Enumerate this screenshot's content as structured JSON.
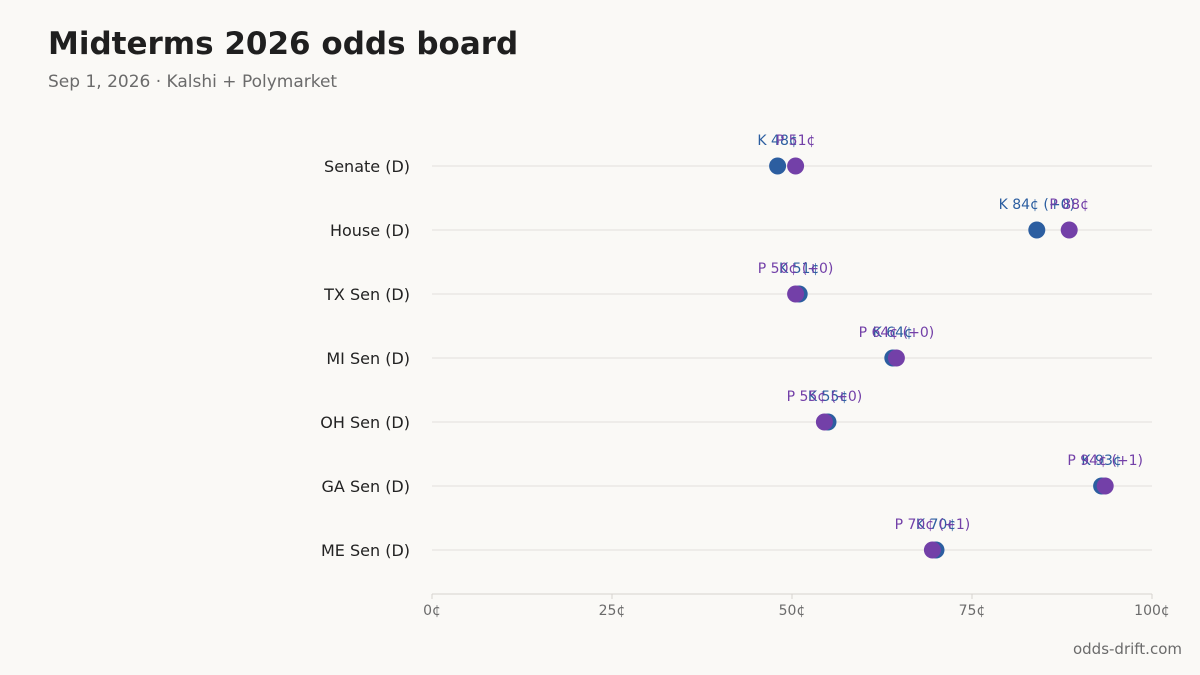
{
  "title": "Midterms 2026 odds board",
  "subtitle": "Sep 1, 2026 · Kalshi + Polymarket",
  "footer": "odds-drift.com",
  "colors": {
    "kalshi": "#2c5ea0",
    "polymarket": "#7340a8",
    "grid": "#e2e0dc",
    "axis": "#d6d3ce",
    "text": "#222222",
    "tick": "#6b6b6b"
  },
  "chart_data": {
    "type": "scatter",
    "x_ticks": [
      "0¢",
      "25¢",
      "50¢",
      "75¢",
      "100¢"
    ],
    "xlim": [
      0,
      100
    ],
    "series": [
      {
        "name": "K",
        "values": [
          48,
          84,
          51,
          64,
          55,
          93,
          70
        ]
      },
      {
        "name": "P",
        "values": [
          50.5,
          88.5,
          50.5,
          64.5,
          54.5,
          93.5,
          69.5
        ]
      }
    ],
    "rows": [
      {
        "label": "Senate (D)",
        "k": 48,
        "p": 50.5,
        "k_text": "K 48¢",
        "p_text": "P 51¢"
      },
      {
        "label": "House (D)",
        "k": 84,
        "p": 88.5,
        "k_text": "K 84¢ (+0)",
        "p_text": "P 88¢"
      },
      {
        "label": "TX Sen (D)",
        "k": 51,
        "p": 50.5,
        "k_text": "K 51¢",
        "p_text": "P 50¢ (+0)"
      },
      {
        "label": "MI Sen (D)",
        "k": 64,
        "p": 64.5,
        "k_text": "K 64¢",
        "p_text": "P 64¢ (+0)"
      },
      {
        "label": "OH Sen (D)",
        "k": 55,
        "p": 54.5,
        "k_text": "K 55¢",
        "p_text": "P 55¢ (+0)"
      },
      {
        "label": "GA Sen (D)",
        "k": 93,
        "p": 93.5,
        "k_text": "K 93¢",
        "p_text": "P 94¢ (+1)"
      },
      {
        "label": "ME Sen (D)",
        "k": 70,
        "p": 69.5,
        "k_text": "K 70¢",
        "p_text": "P 70¢ (+1)"
      }
    ]
  }
}
